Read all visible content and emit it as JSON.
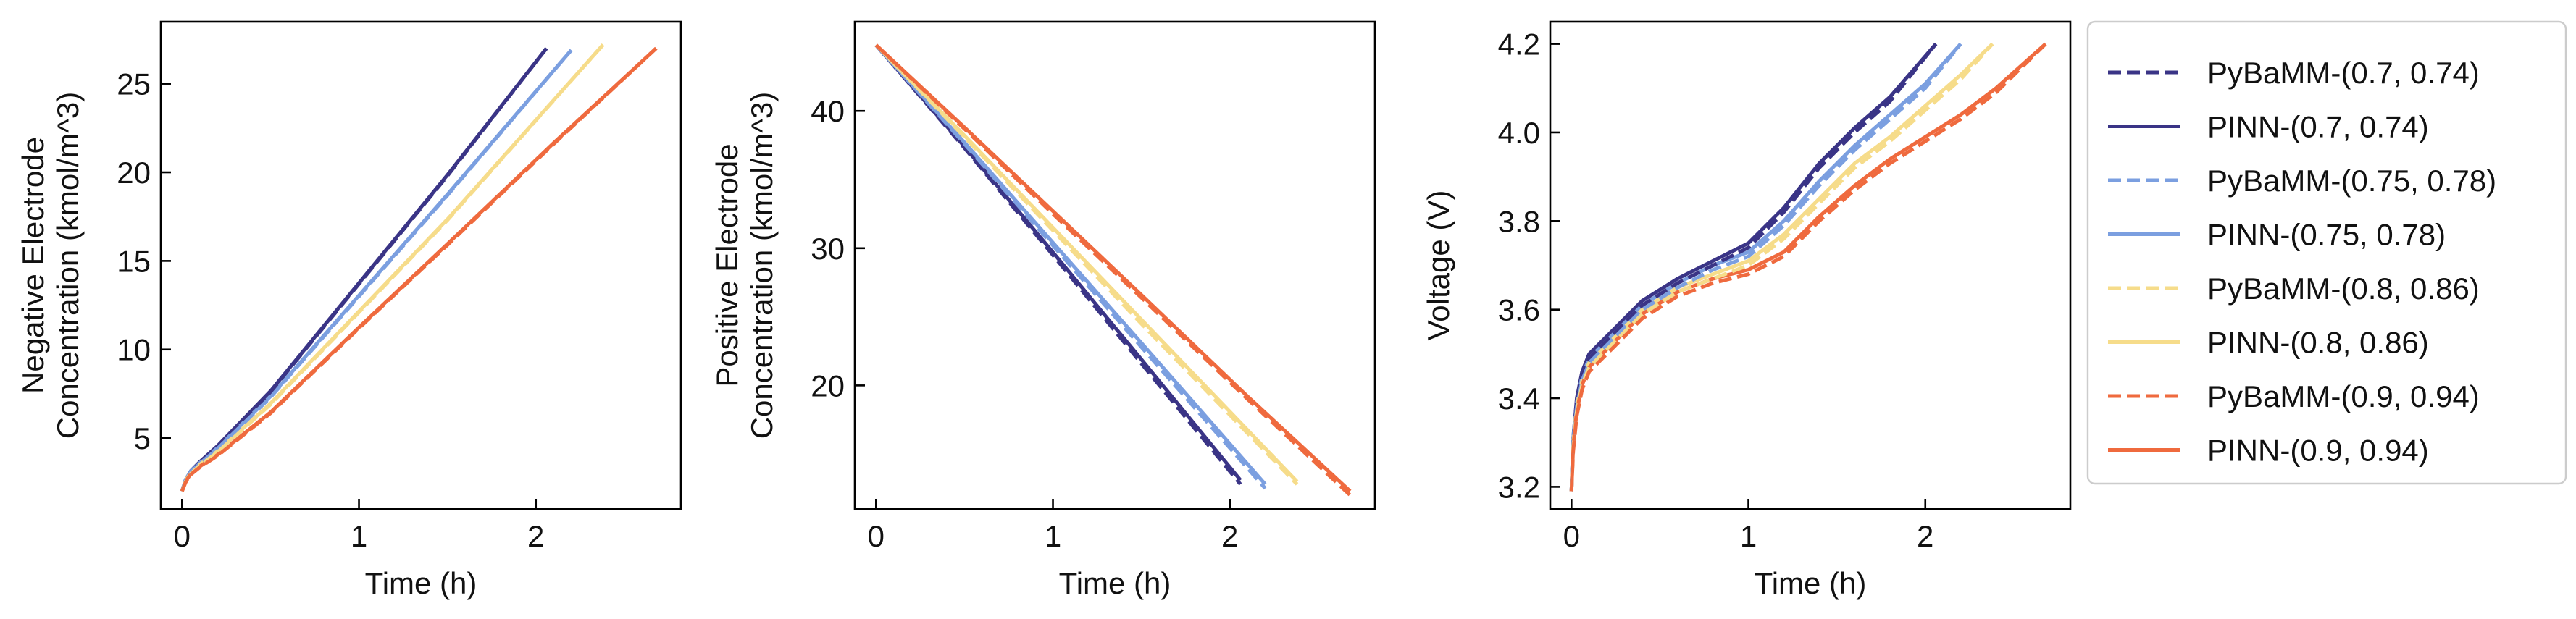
{
  "colors": {
    "axis": "#000000",
    "background": "#ffffff"
  },
  "chart_data": [
    {
      "type": "line",
      "xlabel": "Time (h)",
      "ylabel": [
        "Negative Electrode",
        "Concentration (kmol/m^3)"
      ],
      "xlim": [
        -0.12,
        2.82
      ],
      "ylim": [
        1,
        28.5
      ],
      "xticks": [
        0,
        1,
        2
      ],
      "xtick_labels": [
        "0",
        "1",
        "2"
      ],
      "yticks": [
        5,
        10,
        15,
        20,
        25
      ],
      "ytick_labels": [
        "5",
        "10",
        "15",
        "20",
        "25"
      ],
      "series": [
        {
          "name": "PyBaMM-(0.7, 0.74)",
          "color": "#3a3486",
          "style": "dashed",
          "x": [
            0,
            0.02,
            0.05,
            0.1,
            0.2,
            0.5,
            1.0,
            1.5,
            2.06
          ],
          "y": [
            2.0,
            2.6,
            3.1,
            3.6,
            4.5,
            7.6,
            13.7,
            19.8,
            27.0
          ]
        },
        {
          "name": "PINN-(0.7, 0.74)",
          "color": "#3a3486",
          "style": "solid",
          "x": [
            0,
            0.02,
            0.05,
            0.1,
            0.2,
            0.5,
            1.0,
            1.5,
            2.06
          ],
          "y": [
            2.0,
            2.65,
            3.15,
            3.65,
            4.55,
            7.65,
            13.75,
            19.85,
            27.0
          ]
        },
        {
          "name": "PyBaMM-(0.75, 0.78)",
          "color": "#7b9fe0",
          "style": "dashed",
          "x": [
            0,
            0.02,
            0.05,
            0.1,
            0.2,
            0.5,
            1.0,
            1.5,
            2.2
          ],
          "y": [
            2.0,
            2.6,
            3.1,
            3.55,
            4.4,
            7.3,
            13.0,
            18.7,
            26.9
          ]
        },
        {
          "name": "PINN-(0.75, 0.78)",
          "color": "#7b9fe0",
          "style": "solid",
          "x": [
            0,
            0.02,
            0.05,
            0.1,
            0.2,
            0.5,
            1.0,
            1.5,
            2.2
          ],
          "y": [
            2.0,
            2.65,
            3.15,
            3.6,
            4.45,
            7.35,
            13.05,
            18.75,
            26.9
          ]
        },
        {
          "name": "PyBaMM-(0.8, 0.86)",
          "color": "#f6dc8a",
          "style": "dashed",
          "x": [
            0,
            0.02,
            0.05,
            0.1,
            0.2,
            0.5,
            1.0,
            1.5,
            2.38
          ],
          "y": [
            2.0,
            2.55,
            3.0,
            3.45,
            4.2,
            6.9,
            12.1,
            17.3,
            27.2
          ]
        },
        {
          "name": "PINN-(0.8, 0.86)",
          "color": "#f6dc8a",
          "style": "solid",
          "x": [
            0,
            0.02,
            0.05,
            0.1,
            0.2,
            0.5,
            1.0,
            1.5,
            2.38
          ],
          "y": [
            2.0,
            2.6,
            3.05,
            3.5,
            4.25,
            6.95,
            12.15,
            17.35,
            27.2
          ]
        },
        {
          "name": "PyBaMM-(0.9, 0.94)",
          "color": "#ef6a3e",
          "style": "dashed",
          "x": [
            0,
            0.02,
            0.05,
            0.1,
            0.2,
            0.5,
            1.0,
            1.5,
            2.1,
            2.68
          ],
          "y": [
            2.0,
            2.5,
            2.95,
            3.35,
            4.0,
            6.4,
            11.2,
            15.9,
            21.6,
            27.0
          ]
        },
        {
          "name": "PINN-(0.9, 0.94)",
          "color": "#ef6a3e",
          "style": "solid",
          "x": [
            0,
            0.02,
            0.05,
            0.1,
            0.2,
            0.5,
            1.0,
            1.5,
            2.1,
            2.68
          ],
          "y": [
            2.0,
            2.55,
            3.0,
            3.4,
            4.05,
            6.45,
            11.25,
            15.95,
            21.65,
            27.0
          ]
        }
      ]
    },
    {
      "type": "line",
      "xlabel": "Time (h)",
      "ylabel": [
        "Positive Electrode",
        "Concentration (kmol/m^3)"
      ],
      "xlim": [
        -0.12,
        2.82
      ],
      "ylim": [
        11,
        46.5
      ],
      "xticks": [
        0,
        1,
        2
      ],
      "xtick_labels": [
        "0",
        "1",
        "2"
      ],
      "yticks": [
        20,
        30,
        40
      ],
      "ytick_labels": [
        "20",
        "30",
        "40"
      ],
      "series": [
        {
          "name": "PyBaMM-(0.7, 0.74)",
          "color": "#3a3486",
          "style": "dashed",
          "x": [
            0,
            0.5,
            1.0,
            1.5,
            2.06
          ],
          "y": [
            44.8,
            37.3,
            29.5,
            21.6,
            12.8
          ]
        },
        {
          "name": "PINN-(0.7, 0.74)",
          "color": "#3a3486",
          "style": "solid",
          "x": [
            0,
            0.5,
            1.0,
            1.5,
            2.06
          ],
          "y": [
            44.8,
            37.4,
            29.7,
            21.9,
            13.1
          ]
        },
        {
          "name": "PyBaMM-(0.75, 0.78)",
          "color": "#7b9fe0",
          "style": "dashed",
          "x": [
            0,
            0.5,
            1.0,
            1.5,
            2.2
          ],
          "y": [
            44.8,
            37.6,
            30.2,
            22.8,
            12.5
          ]
        },
        {
          "name": "PINN-(0.75, 0.78)",
          "color": "#7b9fe0",
          "style": "solid",
          "x": [
            0,
            0.5,
            1.0,
            1.5,
            2.2
          ],
          "y": [
            44.8,
            37.7,
            30.4,
            23.1,
            12.8
          ]
        },
        {
          "name": "PyBaMM-(0.8, 0.86)",
          "color": "#f6dc8a",
          "style": "dashed",
          "x": [
            0,
            0.5,
            1.0,
            1.5,
            2.38
          ],
          "y": [
            44.8,
            38.1,
            31.3,
            24.5,
            12.8
          ]
        },
        {
          "name": "PINN-(0.8, 0.86)",
          "color": "#f6dc8a",
          "style": "solid",
          "x": [
            0,
            0.5,
            1.0,
            1.5,
            2.38
          ],
          "y": [
            44.8,
            38.2,
            31.5,
            24.8,
            13.0
          ]
        },
        {
          "name": "PyBaMM-(0.9, 0.94)",
          "color": "#ef6a3e",
          "style": "dashed",
          "x": [
            0,
            0.5,
            1.0,
            1.5,
            2.1,
            2.68
          ],
          "y": [
            44.8,
            38.7,
            32.5,
            26.4,
            19.0,
            12.0
          ]
        },
        {
          "name": "PINN-(0.9, 0.94)",
          "color": "#ef6a3e",
          "style": "solid",
          "x": [
            0,
            0.5,
            1.0,
            1.5,
            2.1,
            2.68
          ],
          "y": [
            44.8,
            38.8,
            32.7,
            26.6,
            19.2,
            12.3
          ]
        }
      ]
    },
    {
      "type": "line",
      "xlabel": "Time (h)",
      "ylabel": [
        "Voltage (V)"
      ],
      "xlim": [
        -0.12,
        2.82
      ],
      "ylim": [
        3.15,
        4.25
      ],
      "xticks": [
        0,
        1,
        2
      ],
      "xtick_labels": [
        "0",
        "1",
        "2"
      ],
      "yticks": [
        3.2,
        3.4,
        3.6,
        3.8,
        4.0,
        4.2
      ],
      "ytick_labels": [
        "3.2",
        "3.4",
        "3.6",
        "3.8",
        "4.0",
        "4.2"
      ],
      "series": [
        {
          "name": "PyBaMM-(0.7, 0.74)",
          "color": "#3a3486",
          "style": "dashed",
          "x": [
            0,
            0.01,
            0.03,
            0.06,
            0.1,
            0.15,
            0.25,
            0.4,
            0.6,
            0.8,
            1.0,
            1.2,
            1.4,
            1.6,
            1.8,
            2.06
          ],
          "y": [
            3.19,
            3.3,
            3.39,
            3.45,
            3.49,
            3.51,
            3.55,
            3.61,
            3.66,
            3.7,
            3.74,
            3.82,
            3.92,
            4.0,
            4.07,
            4.2
          ]
        },
        {
          "name": "PINN-(0.7, 0.74)",
          "color": "#3a3486",
          "style": "solid",
          "x": [
            0,
            0.01,
            0.03,
            0.06,
            0.1,
            0.15,
            0.25,
            0.4,
            0.6,
            0.8,
            1.0,
            1.2,
            1.4,
            1.6,
            1.8,
            2.06
          ],
          "y": [
            3.19,
            3.31,
            3.4,
            3.46,
            3.5,
            3.52,
            3.56,
            3.62,
            3.67,
            3.71,
            3.75,
            3.83,
            3.93,
            4.01,
            4.08,
            4.2
          ]
        },
        {
          "name": "PyBaMM-(0.75, 0.78)",
          "color": "#7b9fe0",
          "style": "dashed",
          "x": [
            0,
            0.01,
            0.03,
            0.06,
            0.1,
            0.15,
            0.25,
            0.4,
            0.6,
            0.8,
            1.0,
            1.2,
            1.4,
            1.6,
            1.8,
            2.0,
            2.2
          ],
          "y": [
            3.19,
            3.3,
            3.38,
            3.44,
            3.48,
            3.5,
            3.54,
            3.6,
            3.65,
            3.69,
            3.72,
            3.79,
            3.88,
            3.96,
            4.03,
            4.1,
            4.2
          ]
        },
        {
          "name": "PINN-(0.75, 0.78)",
          "color": "#7b9fe0",
          "style": "solid",
          "x": [
            0,
            0.01,
            0.03,
            0.06,
            0.1,
            0.15,
            0.25,
            0.4,
            0.6,
            0.8,
            1.0,
            1.2,
            1.4,
            1.6,
            1.8,
            2.0,
            2.2
          ],
          "y": [
            3.19,
            3.31,
            3.39,
            3.45,
            3.49,
            3.51,
            3.55,
            3.61,
            3.66,
            3.7,
            3.73,
            3.8,
            3.89,
            3.97,
            4.04,
            4.11,
            4.2
          ]
        },
        {
          "name": "PyBaMM-(0.8, 0.86)",
          "color": "#f6dc8a",
          "style": "dashed",
          "x": [
            0,
            0.01,
            0.03,
            0.06,
            0.1,
            0.15,
            0.25,
            0.4,
            0.6,
            0.8,
            1.0,
            1.2,
            1.4,
            1.6,
            1.8,
            2.0,
            2.2,
            2.38
          ],
          "y": [
            3.19,
            3.29,
            3.37,
            3.43,
            3.47,
            3.49,
            3.53,
            3.59,
            3.64,
            3.67,
            3.7,
            3.76,
            3.84,
            3.92,
            3.98,
            4.05,
            4.12,
            4.2
          ]
        },
        {
          "name": "PINN-(0.8, 0.86)",
          "color": "#f6dc8a",
          "style": "solid",
          "x": [
            0,
            0.01,
            0.03,
            0.06,
            0.1,
            0.15,
            0.25,
            0.4,
            0.6,
            0.8,
            1.0,
            1.2,
            1.4,
            1.6,
            1.8,
            2.0,
            2.2,
            2.38
          ],
          "y": [
            3.19,
            3.3,
            3.38,
            3.44,
            3.48,
            3.5,
            3.54,
            3.6,
            3.65,
            3.68,
            3.71,
            3.77,
            3.85,
            3.93,
            3.99,
            4.06,
            4.13,
            4.2
          ]
        },
        {
          "name": "PyBaMM-(0.9, 0.94)",
          "color": "#ef6a3e",
          "style": "dashed",
          "x": [
            0,
            0.01,
            0.03,
            0.06,
            0.1,
            0.15,
            0.25,
            0.4,
            0.6,
            0.8,
            1.0,
            1.2,
            1.4,
            1.6,
            1.8,
            2.0,
            2.2,
            2.4,
            2.68
          ],
          "y": [
            3.19,
            3.28,
            3.36,
            3.42,
            3.46,
            3.48,
            3.52,
            3.58,
            3.63,
            3.66,
            3.68,
            3.72,
            3.8,
            3.87,
            3.93,
            3.98,
            4.03,
            4.09,
            4.2
          ]
        },
        {
          "name": "PINN-(0.9, 0.94)",
          "color": "#ef6a3e",
          "style": "solid",
          "x": [
            0,
            0.01,
            0.03,
            0.06,
            0.1,
            0.15,
            0.25,
            0.4,
            0.6,
            0.8,
            1.0,
            1.2,
            1.4,
            1.6,
            1.8,
            2.0,
            2.2,
            2.4,
            2.68
          ],
          "y": [
            3.19,
            3.29,
            3.37,
            3.43,
            3.47,
            3.49,
            3.53,
            3.59,
            3.64,
            3.67,
            3.69,
            3.73,
            3.81,
            3.88,
            3.94,
            3.99,
            4.04,
            4.1,
            4.2
          ]
        }
      ]
    }
  ],
  "legend": {
    "placement": "right",
    "entries": [
      {
        "label": "PyBaMM-(0.7, 0.74)",
        "color": "#3a3486",
        "style": "dashed"
      },
      {
        "label": "PINN-(0.7, 0.74)",
        "color": "#3a3486",
        "style": "solid"
      },
      {
        "label": "PyBaMM-(0.75, 0.78)",
        "color": "#7b9fe0",
        "style": "dashed"
      },
      {
        "label": "PINN-(0.75, 0.78)",
        "color": "#7b9fe0",
        "style": "solid"
      },
      {
        "label": "PyBaMM-(0.8, 0.86)",
        "color": "#f6dc8a",
        "style": "dashed"
      },
      {
        "label": "PINN-(0.8, 0.86)",
        "color": "#f6dc8a",
        "style": "solid"
      },
      {
        "label": "PyBaMM-(0.9, 0.94)",
        "color": "#ef6a3e",
        "style": "dashed"
      },
      {
        "label": "PINN-(0.9, 0.94)",
        "color": "#ef6a3e",
        "style": "solid"
      }
    ]
  }
}
